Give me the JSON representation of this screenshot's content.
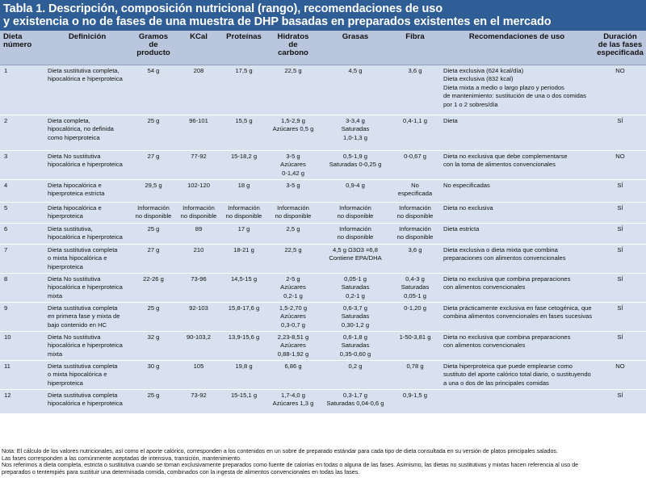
{
  "title": {
    "line1": "Tabla 1. Descripción, composición nutricional (rango), recomendaciones de uso",
    "line2": "y existencia o no de fases de una muestra de DHP basadas en preparados existentes en el mercado"
  },
  "columns": [
    "Dieta\nnúmero",
    "Definición",
    "Gramos\nde\nproducto",
    "KCal",
    "Proteínas",
    "Hidratos\nde\ncarbono",
    "Grasas",
    "Fibra",
    "Recomendaciones de uso",
    "Duración\nde las fases\nespecificada"
  ],
  "rows": [
    [
      "1",
      "Dieta sustitutiva completa,\nhipocalórica e hiperproteica",
      "54 g",
      "208",
      "17,5 g",
      "22,5 g",
      "4,5 g",
      "3,6 g",
      "Dieta exclusiva (624 kcal/día)\nDieta exclusiva (832 kcal)\nDieta mixta a medio o largo plazo y periodos\nde mantenimiento: sustitución de una o dos comidas\npor 1 o 2 sobres/día",
      "NO"
    ],
    [
      "2",
      "Dieta completa,\nhipocalórica, no definida\ncomo hiperproteica",
      "25 g",
      "96-101",
      "15,5 g",
      "1,5-2,9 g\nAzúcares 0,5 g",
      "3-3,4 g\nSaturadas\n1,0-1,3 g",
      "0,4-1,1 g",
      "Dieta",
      "SÍ"
    ],
    [
      "3",
      "Dieta No sustitutiva\nhipocalórica e hiperproteica",
      "27 g",
      "77-92",
      "15-18,2 g",
      "3-5 g\nAzúcares\n0-1,42 g",
      "0,5-1,9 g\nSaturadas 0-0,25 g",
      "0-0,67 g",
      "Dieta no exclusiva que debe complementarse\ncon la toma de alimentos convencionales",
      "NO"
    ],
    [
      "4",
      "Dieta hipocalórica e\nhiperproteica estricta",
      "29,5 g",
      "102-120",
      "18 g",
      "3-5 g",
      "0,9-4 g",
      "No\nespecificada",
      "No especificadas",
      "SÍ"
    ],
    [
      "5",
      "Dieta hipocalórica e\nhiperproteica",
      "Información\nno disponible",
      "Información\nno disponible",
      "Información\nno disponible",
      "Información\nno disponible",
      "Información\nno disponible",
      "Información\nno disponible",
      "Dieta no exclusiva",
      "SÍ"
    ],
    [
      "6",
      "Dieta sustitutiva,\nhipocalórica e hiperproteica",
      "25 g",
      "89",
      "17 g",
      "2,5 g",
      "Información\nno disponible",
      "Información\nno disponible",
      "Dieta estricta",
      "SÍ"
    ],
    [
      "7",
      "Dieta sustitutiva completa\no mixta hipocalórica e\nhiperproteica",
      "27 g",
      "210",
      "18-21 g",
      "22,5 g",
      "4,5 g Ω3Ω3 =6,8\nContiene EPA/DHA",
      "3,6 g",
      "Dieta exclusiva o dieta mixta que combina\npreparaciones con alimentos convencionales",
      "SÍ"
    ],
    [
      "8",
      "Dieta No sustitutiva\nhipocalórica e hiperproteica\nmixta",
      "22-26 g",
      "73-96",
      "14,5-15 g",
      "2-5 g\nAzúcares\n0,2-1 g",
      "0,05-1 g\nSaturadas\n0,2-1 g",
      "0,4-3 g\nSaturadas\n0,05-1 g",
      "Dieta no exclusiva que combina preparaciones\ncon alimentos convencionales",
      "SÍ"
    ],
    [
      "9",
      "Dieta sustitutiva completa\nen primera fase y mixta de\nbajo contenido en HC",
      "25 g",
      "92-103",
      "15,8-17,6 g",
      "1,5-2,70 g\nAzúcares\n0,3-0,7 g",
      "0,6-3,7 g\nSaturadas\n0,30-1,2 g",
      "0-1,20 g",
      "Dieta prácticamente exclusiva en fase cetogénica, que\ncombina alimentos convencionales en fases sucesivas",
      "SÍ"
    ],
    [
      "10",
      "Dieta No sustitutiva\nhipocalórica e hiperproteica\nmixta",
      "32 g",
      "90-103,2",
      "13,9-15,6 g",
      "2,23-8,51 g\nAzúcares\n0,88-1,92 g",
      "0,6-1,8 g\nSaturadas\n0,35-0,60 g",
      "1-50-3,81 g",
      "Dieta no exclusiva que combina preparaciones\ncon alimentos convencionales",
      "SÍ"
    ],
    [
      "11",
      "Dieta sustitutiva completa\no mixta hipocalórica e\nhiperproteica",
      "30 g",
      "105",
      "19,8 g",
      "6,86 g",
      "0,2 g",
      "0,78 g",
      "Dieta hiperproteica que puede emplearse como\nsustituto del aporte calórico total diario, o sustituyendo\na una o dos de las principales comidas",
      "NO"
    ],
    [
      "12",
      "Dieta sustitutiva completa\nhipocalórica e hiperproteica",
      "25 g",
      "73-92",
      "15-15,1 g",
      "1,7-4,0 g\nAzúcares 1,3 g",
      "0,3-1,7 g\nSaturadas 0,04-0,6 g",
      "0,9-1,5 g",
      "",
      "SÍ"
    ]
  ],
  "notes": [
    "Nota: El cálculo de los valores nutricionales, así como el aporte calórico, corresponden a los contenidos en un sobre de preparado estándar para cada tipo de dieta consultada en su versión de platos principales salados.",
    "Las fases corresponden a las comúnmente aceptadas de intensiva, transición, mantenimiento.",
    "Nos referimos a dieta completa, estricta o sustitutiva cuando se toman exclusivamente preparados como fuente de calorías en todas o alguna de las fases. Asimismo, las dietas no sustitutivas y mixtas hacen referencia al uso de",
    "preparados o tentempiés para sustituir una determinada comida, combinados con la ingesta de alimentos convencionales en todas las fases."
  ],
  "colors": {
    "title_bg": "#2f5e97",
    "header_bg": "#b9c6de",
    "row_bg": "#d8e1ef"
  }
}
